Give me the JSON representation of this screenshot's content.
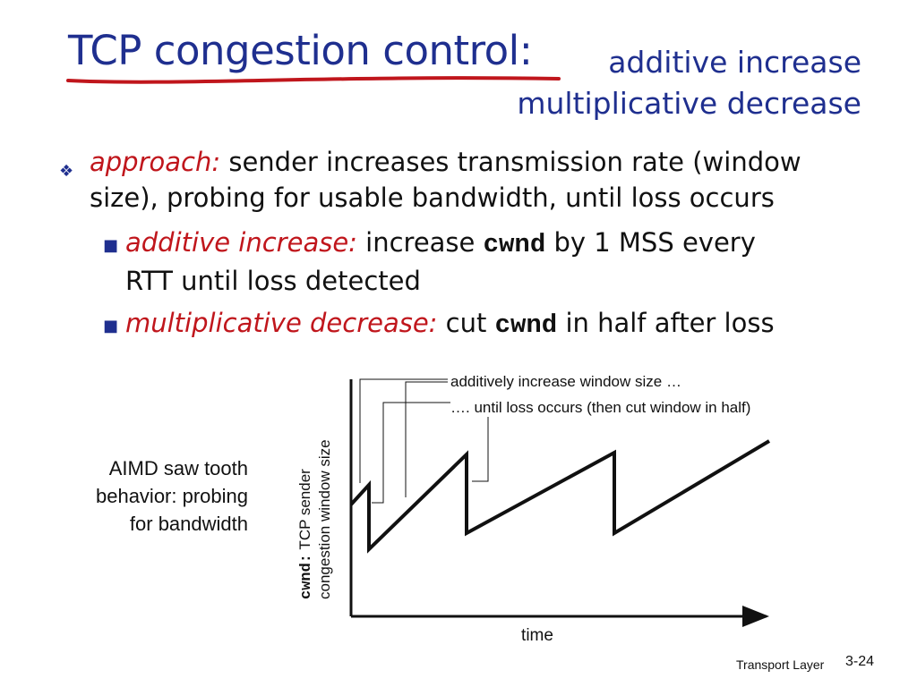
{
  "slide": {
    "title_main": "TCP congestion control:",
    "title_sub_line1": "additive increase",
    "title_sub_line2": "multiplicative decrease",
    "footer_label": "Transport Layer",
    "slide_number": "3-24"
  },
  "bullets": {
    "approach": {
      "emphasis": "approach:",
      "text_line1": "sender increases transmission rate (window",
      "text_line2": "size), probing for usable bandwidth, until loss occurs"
    },
    "additive": {
      "emphasis": "additive increase:",
      "text_a": "increase",
      "code": "cwnd",
      "text_b": "by 1 MSS every",
      "text_line2": "RTT until loss detected"
    },
    "multiplicative": {
      "emphasis": "multiplicative decrease:",
      "text_a": "cut",
      "code": "cwnd",
      "text_b": "in half after loss"
    }
  },
  "side_caption": {
    "line1": "AIMD saw tooth",
    "line2": "behavior: probing",
    "line3": "for bandwidth"
  },
  "diagram": {
    "callout_increase": "additively increase window size …",
    "callout_loss": "…. until loss occurs (then cut window in half)",
    "y_label_code": "cwnd:",
    "y_label_line1": " TCP sender",
    "y_label_line2": "congestion window size",
    "x_label": "time"
  },
  "colors": {
    "title": "#1f2f8f",
    "emphasis": "#c0161c",
    "underline": "#c0161c"
  }
}
